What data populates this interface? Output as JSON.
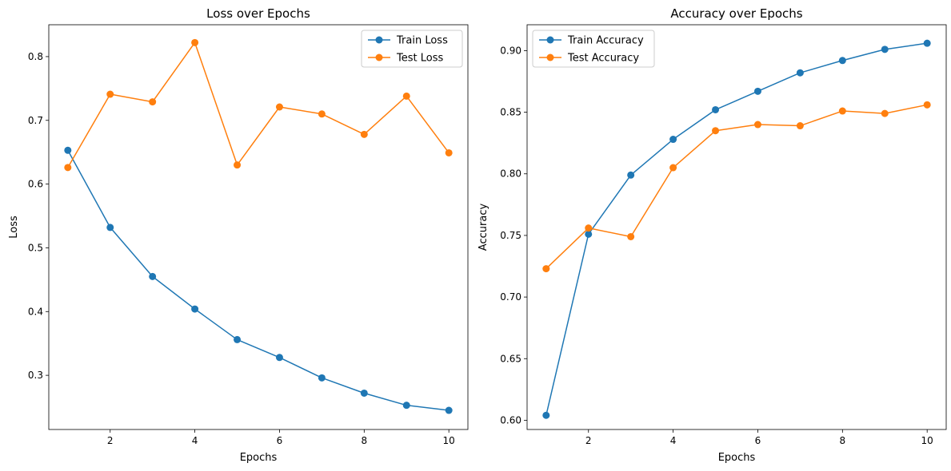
{
  "chart_data": [
    {
      "type": "line",
      "title": "Loss over Epochs",
      "xlabel": "Epochs",
      "ylabel": "Loss",
      "x": [
        1,
        2,
        3,
        4,
        5,
        6,
        7,
        8,
        9,
        10
      ],
      "xlim": [
        0.55,
        10.45
      ],
      "ylim": [
        0.215,
        0.85
      ],
      "xticks": [
        2,
        4,
        6,
        8,
        10
      ],
      "yticks": [
        0.3,
        0.4,
        0.5,
        0.6,
        0.7,
        0.8
      ],
      "ytick_decimals": 1,
      "grid": false,
      "legend": "top-right",
      "series": [
        {
          "name": "Train Loss",
          "color": "#1f77b4",
          "values": [
            0.653,
            0.532,
            0.455,
            0.404,
            0.356,
            0.328,
            0.296,
            0.272,
            0.253,
            0.245
          ]
        },
        {
          "name": "Test Loss",
          "color": "#ff7f0e",
          "values": [
            0.626,
            0.741,
            0.729,
            0.822,
            0.63,
            0.721,
            0.71,
            0.678,
            0.738,
            0.649
          ]
        }
      ]
    },
    {
      "type": "line",
      "title": "Accuracy over Epochs",
      "xlabel": "Epochs",
      "ylabel": "Accuracy",
      "x": [
        1,
        2,
        3,
        4,
        5,
        6,
        7,
        8,
        9,
        10
      ],
      "xlim": [
        0.55,
        10.45
      ],
      "ylim": [
        0.5925,
        0.921
      ],
      "xticks": [
        2,
        4,
        6,
        8,
        10
      ],
      "yticks": [
        0.6,
        0.65,
        0.7,
        0.75,
        0.8,
        0.85,
        0.9
      ],
      "ytick_decimals": 2,
      "grid": false,
      "legend": "top-left",
      "series": [
        {
          "name": "Train Accuracy",
          "color": "#1f77b4",
          "values": [
            0.604,
            0.751,
            0.799,
            0.828,
            0.852,
            0.867,
            0.882,
            0.892,
            0.901,
            0.906
          ]
        },
        {
          "name": "Test Accuracy",
          "color": "#ff7f0e",
          "values": [
            0.723,
            0.756,
            0.749,
            0.805,
            0.835,
            0.84,
            0.839,
            0.851,
            0.849,
            0.856
          ]
        }
      ]
    }
  ]
}
